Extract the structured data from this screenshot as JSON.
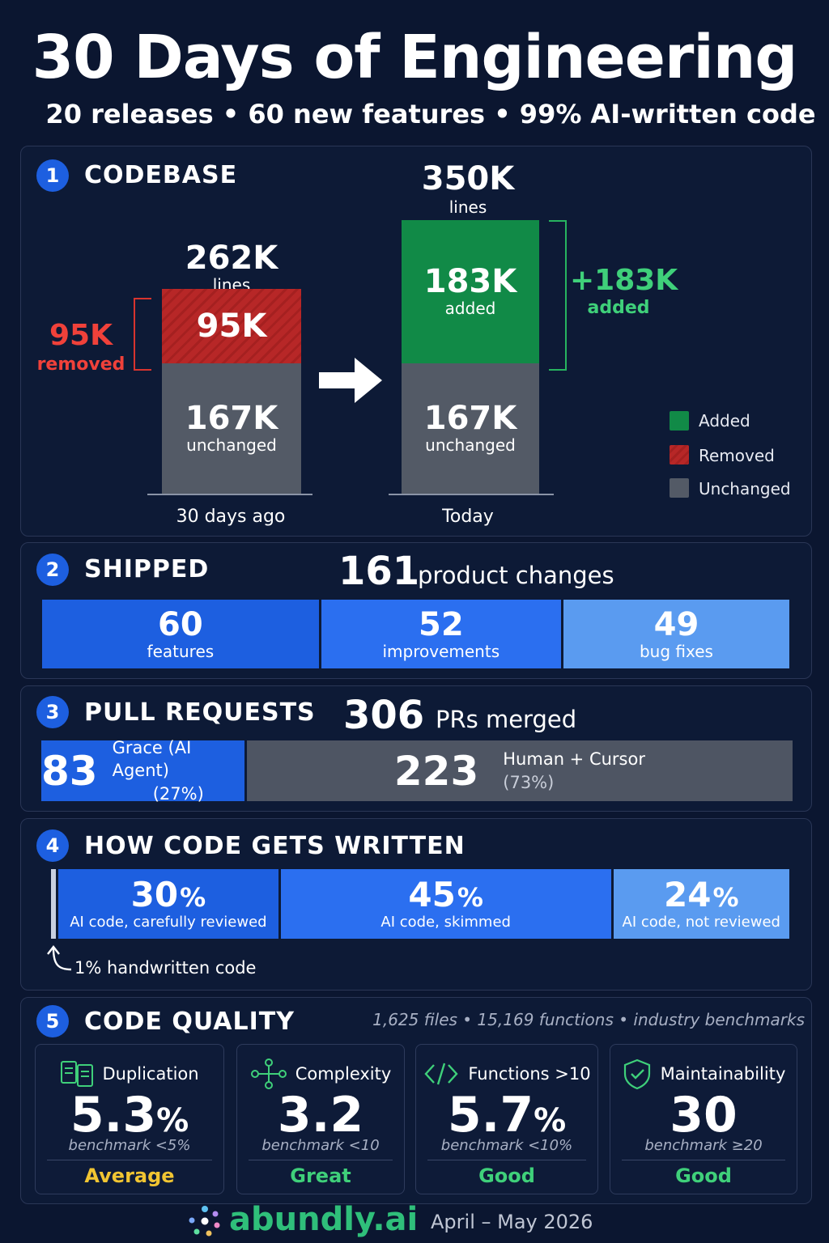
{
  "header": {
    "title": "30 Days of Engineering",
    "subtitle": "20 releases  •  60 new features  •  99% AI-written code"
  },
  "colors": {
    "background": "#0b1630",
    "added": "#118a47",
    "removed": "#b72727",
    "unchanged": "#535a66",
    "blue_dark": "#1d5fe0",
    "blue_mid": "#2b6ff0",
    "blue_light": "#5a9bf0",
    "gray": "#4e5563",
    "green_text": "#3fd07a",
    "red_text": "#f0413a",
    "yellow_text": "#f1c532"
  },
  "sections": {
    "codebase": {
      "number": "1",
      "title": "CODEBASE"
    },
    "shipped": {
      "number": "2",
      "title": "SHIPPED"
    },
    "pull_requests": {
      "number": "3",
      "title": "PULL REQUESTS"
    },
    "written": {
      "number": "4",
      "title": "HOW CODE GETS WRITTEN"
    },
    "quality": {
      "number": "5",
      "title": "CODE QUALITY"
    }
  },
  "chart_data": [
    {
      "type": "bar",
      "title": "CODEBASE",
      "categories": [
        "30 days ago",
        "Today"
      ],
      "series": [
        {
          "name": "Unchanged",
          "values": [
            167,
            167
          ]
        },
        {
          "name": "Removed",
          "values": [
            95,
            0
          ]
        },
        {
          "name": "Added",
          "values": [
            0,
            183
          ]
        }
      ],
      "units": "K lines",
      "totals": [
        "262K",
        "350K"
      ],
      "totals_label": "lines",
      "segment_labels": {
        "before_removed": "95K",
        "before_unchanged": "167K",
        "after_added": "183K",
        "after_unchanged": "167K",
        "added_word": "added",
        "unchanged_word": "unchanged"
      },
      "annotations": {
        "removed_value": "95K",
        "removed_word": "removed",
        "added_value": "+183K",
        "added_word": "added"
      },
      "legend": [
        "Added",
        "Removed",
        "Unchanged"
      ],
      "legend_position": "bottom-right",
      "ylim": [
        0,
        350
      ]
    },
    {
      "type": "bar",
      "title": "SHIPPED",
      "total": "161",
      "total_label": "product changes",
      "categories": [
        "features",
        "improvements",
        "bug fixes"
      ],
      "values": [
        60,
        52,
        49
      ]
    },
    {
      "type": "bar",
      "title": "PULL REQUESTS",
      "total": "306",
      "total_label": "PRs merged",
      "categories": [
        "Grace (AI Agent)",
        "Human + Cursor"
      ],
      "values": [
        83,
        223
      ],
      "percents": [
        "(27%)",
        "(73%)"
      ]
    },
    {
      "type": "bar",
      "title": "HOW CODE GETS WRITTEN",
      "categories": [
        "AI code, carefully reviewed",
        "AI code, skimmed",
        "AI code, not reviewed"
      ],
      "values": [
        30,
        45,
        24
      ],
      "value_labels": [
        "30",
        "45",
        "24"
      ],
      "percent_sign": "%",
      "handwritten_note": "1% handwritten code",
      "handwritten_value": 1
    }
  ],
  "quality": {
    "meta": "1,625 files  •  15,169 functions  •  industry benchmarks",
    "cards": [
      {
        "label": "Duplication",
        "value": "5.3",
        "unit": "%",
        "benchmark": "benchmark <5%",
        "rating": "Average",
        "icon": "duplicate-files-icon"
      },
      {
        "label": "Complexity",
        "value": "3.2",
        "unit": "",
        "benchmark": "benchmark <10",
        "rating": "Great",
        "icon": "node-graph-icon"
      },
      {
        "label": "Functions >10",
        "value": "5.7",
        "unit": "%",
        "benchmark": "benchmark <10%",
        "rating": "Good",
        "icon": "code-brackets-icon"
      },
      {
        "label": "Maintainability",
        "value": "30",
        "unit": "",
        "benchmark": "benchmark ≥20",
        "rating": "Good",
        "icon": "shield-check-icon"
      }
    ]
  },
  "footer": {
    "brand": "abundly.ai",
    "date": "April – May 2026"
  }
}
